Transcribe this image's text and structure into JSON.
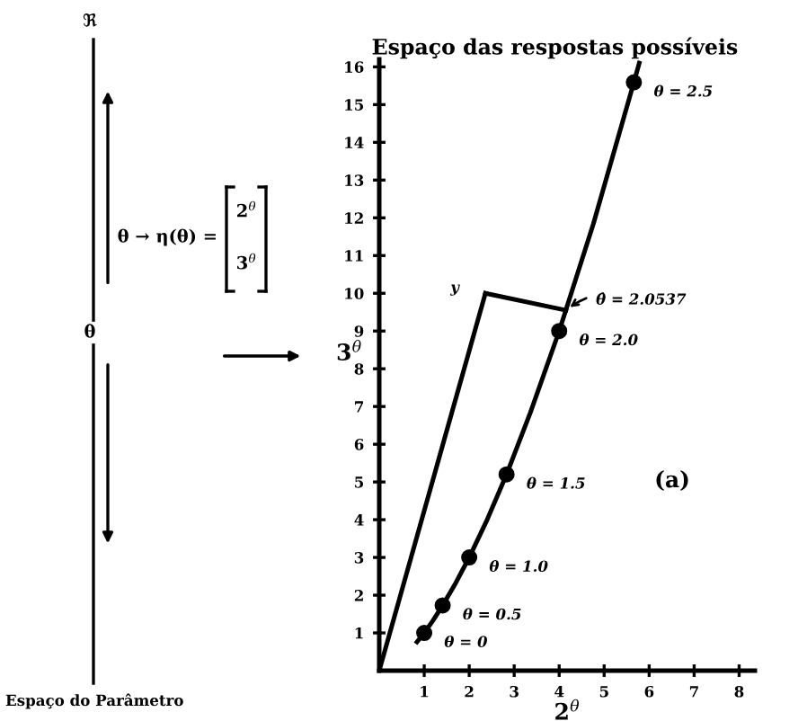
{
  "chart_data": {
    "type": "line",
    "title": "Espaço das respostas possíveis",
    "xlabel": "2$^{θ}$",
    "ylabel": "3$^{θ}$",
    "xlim": [
      0,
      8.35
    ],
    "ylim": [
      0,
      16.2
    ],
    "xticks": [
      1,
      2,
      3,
      4,
      5,
      6,
      7,
      8
    ],
    "yticks": [
      1,
      2,
      3,
      4,
      5,
      6,
      7,
      8,
      9,
      10,
      11,
      12,
      13,
      14,
      15,
      16
    ],
    "grid": false,
    "legend": false,
    "series": [
      {
        "color": "#000000",
        "x": [
          0.84,
          1,
          1.19,
          1.41,
          1.68,
          2,
          2.38,
          2.83,
          3.36,
          4,
          4.76,
          5.66,
          5.78
        ],
        "values": [
          0.76,
          1,
          1.32,
          1.73,
          2.28,
          3,
          3.95,
          5.2,
          6.84,
          9,
          11.84,
          15.59,
          16.1
        ]
      },
      {
        "type": "scatter",
        "marker": "circle",
        "color": "#000000",
        "x": [
          1,
          1.41,
          2,
          2.83,
          4,
          5.66
        ],
        "values": [
          1,
          1.73,
          3,
          5.2,
          9,
          15.59
        ]
      },
      {
        "color": "#000000",
        "x": [
          0,
          2.36
        ],
        "values": [
          0,
          10
        ]
      },
      {
        "color": "#000000",
        "x": [
          2.36,
          4.15
        ],
        "values": [
          10,
          9.55
        ]
      }
    ],
    "annotations": [
      {
        "text": "θ = 0",
        "x": 1,
        "y": 1
      },
      {
        "text": "θ = 0.5",
        "x": 1.41,
        "y": 1.73
      },
      {
        "text": "θ = 1.0",
        "x": 2,
        "y": 3
      },
      {
        "text": "θ = 1.5",
        "x": 2.83,
        "y": 5.2
      },
      {
        "text": "θ = 2.0",
        "x": 4,
        "y": 9
      },
      {
        "text": "θ = 2.5",
        "x": 5.66,
        "y": 15.59
      },
      {
        "text": "y",
        "x": 2.36,
        "y": 10
      },
      {
        "text": "θ̂ = 2.0537",
        "x": 4.15,
        "y": 9.55
      },
      "(a)",
      "ℜ",
      "θ",
      "θ → η(θ) =",
      "2$^{θ}$",
      "3$^{θ}$",
      "Espaço do Parâmetro"
    ]
  }
}
